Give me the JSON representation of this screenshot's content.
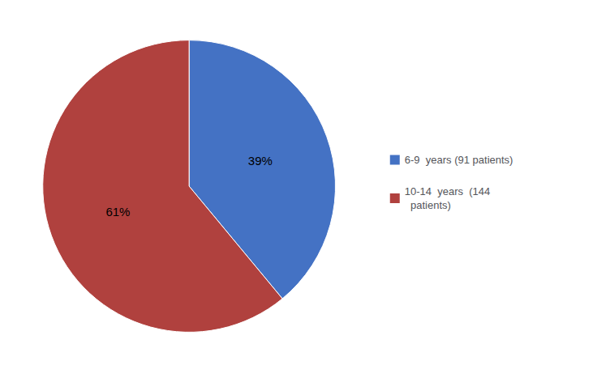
{
  "chart_data": {
    "type": "pie",
    "categories": [
      "6-9  years (91 patients)",
      "10-14  years  (144 \n  patients)"
    ],
    "values": [
      39,
      61
    ],
    "value_labels": [
      "39%",
      "61%"
    ],
    "data_labels": true,
    "colors": [
      "#4472C4",
      "#B0413E"
    ],
    "legend": "right"
  }
}
